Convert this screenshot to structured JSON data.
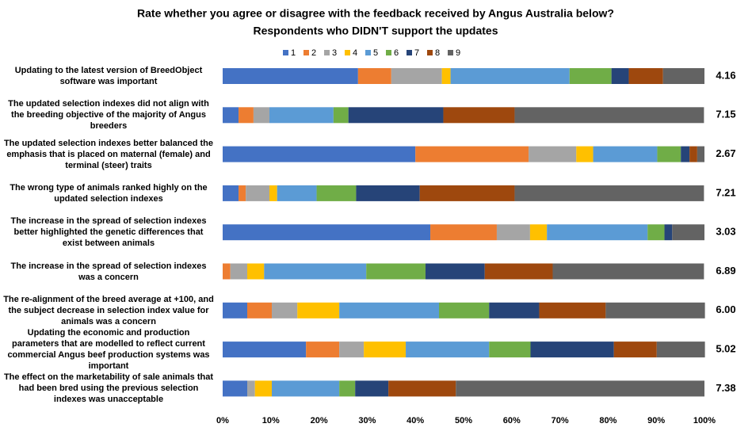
{
  "chart_data": {
    "type": "stacked_bar_h",
    "title": "Rate whether you agree or disagree with the feedback received by Angus Australia below?",
    "subtitle": "Respondents who DIDN'T support the updates",
    "categories": [
      "Updating to the latest version of BreedObject software was important",
      "The updated selection indexes did not align with the breeding objective of the majority of Angus breeders",
      "The updated selection indexes better balanced the emphasis that is placed on maternal (female) and terminal (steer) traits",
      "The wrong type of animals ranked highly on the updated selection indexes",
      "The increase in the spread of selection indexes better highlighted the genetic differences that exist between animals",
      "The increase in the spread of selection indexes was a concern",
      "The re-alignment of the breed average at +100, and the subject decrease in selection index value for animals was a concern",
      "Updating the economic and production parameters that are modelled to reflect current commercial Angus beef production systems was important",
      "The effect on the marketability of sale animals that had been bred using the previous selection indexes was unacceptable"
    ],
    "series": [
      {
        "name": "1",
        "color": "#4472c4",
        "values": [
          28.1,
          3.3,
          40.0,
          3.3,
          43.1,
          0,
          5.1,
          17.3,
          5.1
        ]
      },
      {
        "name": "2",
        "color": "#ed7d31",
        "values": [
          6.9,
          3.1,
          23.5,
          1.5,
          13.8,
          1.6,
          5.1,
          6.9,
          0
        ]
      },
      {
        "name": "3",
        "color": "#a5a5a5",
        "values": [
          10.5,
          3.3,
          9.9,
          4.9,
          6.9,
          3.5,
          5.3,
          5.1,
          1.6
        ]
      },
      {
        "name": "4",
        "color": "#ffc000",
        "values": [
          1.8,
          0,
          3.5,
          1.6,
          3.5,
          3.5,
          8.7,
          8.7,
          3.5
        ]
      },
      {
        "name": "5",
        "color": "#5b9bd5",
        "values": [
          24.7,
          13.3,
          13.3,
          8.2,
          20.9,
          21.2,
          20.7,
          17.3,
          14.0
        ]
      },
      {
        "name": "6",
        "color": "#70ad47",
        "values": [
          8.7,
          3.1,
          4.9,
          8.2,
          3.5,
          12.3,
          10.4,
          8.6,
          3.3
        ]
      },
      {
        "name": "7",
        "color": "#264478",
        "values": [
          3.6,
          19.7,
          1.8,
          13.2,
          1.6,
          12.3,
          10.4,
          17.3,
          6.9
        ]
      },
      {
        "name": "8",
        "color": "#9e480e",
        "values": [
          7.1,
          14.8,
          1.6,
          19.7,
          0,
          14.1,
          13.8,
          8.9,
          14.0
        ]
      },
      {
        "name": "9",
        "color": "#636363",
        "values": [
          8.6,
          39.3,
          1.5,
          39.3,
          6.7,
          31.4,
          20.6,
          10.0,
          51.6
        ]
      }
    ],
    "scores": [
      "4.16",
      "7.15",
      "2.67",
      "7.21",
      "3.03",
      "6.89",
      "6.00",
      "5.02",
      "7.38"
    ],
    "xlim": [
      0,
      100
    ],
    "xticks": [
      {
        "value": 0,
        "label": "0%"
      },
      {
        "value": 10,
        "label": "10%"
      },
      {
        "value": 20,
        "label": "20%"
      },
      {
        "value": 30,
        "label": "30%"
      },
      {
        "value": 40,
        "label": "40%"
      },
      {
        "value": 50,
        "label": "50%"
      },
      {
        "value": 60,
        "label": "60%"
      },
      {
        "value": 70,
        "label": "70%"
      },
      {
        "value": 80,
        "label": "80%"
      },
      {
        "value": 90,
        "label": "90%"
      },
      {
        "value": 100,
        "label": "100%"
      }
    ],
    "grid": false,
    "legend": "top"
  }
}
